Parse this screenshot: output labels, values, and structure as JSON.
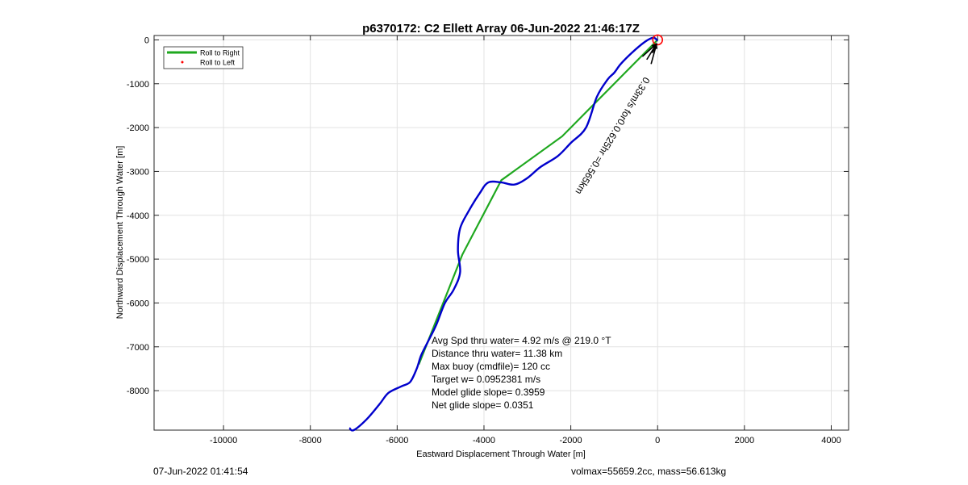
{
  "chart_data": {
    "type": "line",
    "title": "p6370172: C2 Ellett Array 06-Jun-2022 21:46:17Z",
    "xlabel": "Eastward Displacement Through Water [m]",
    "ylabel": "Northward Displacement Through Water [m]",
    "xlim": [
      -11600,
      4400
    ],
    "ylim": [
      -8900,
      100
    ],
    "xticks": [
      -10000,
      -8000,
      -6000,
      -4000,
      -2000,
      0,
      2000,
      4000
    ],
    "yticks": [
      0,
      -1000,
      -2000,
      -3000,
      -4000,
      -5000,
      -6000,
      -7000,
      -8000
    ],
    "grid": true,
    "legend_position": "top-left",
    "series": [
      {
        "name": "Roll to Right",
        "color": "#1fa81f",
        "x": [
          0,
          -800,
          -2200,
          -3600,
          -4500,
          -5500
        ],
        "y": [
          0,
          -800,
          -2200,
          -3200,
          -4900,
          -7400
        ]
      },
      {
        "name": "Roll to Left",
        "color": "#ff0000",
        "x": [],
        "y": []
      },
      {
        "name": "",
        "color": "#0000cc",
        "x": [
          0,
          -100,
          -300,
          -600,
          -850,
          -1000,
          -1150,
          -1400,
          -1650,
          -2000,
          -2300,
          -2700,
          -3000,
          -3300,
          -3600,
          -3900,
          -4100,
          -4350,
          -4550,
          -4600,
          -4550,
          -4700,
          -4900,
          -5100,
          -5300,
          -5450,
          -5550,
          -5700,
          -5900,
          -6200,
          -6400,
          -6700,
          -7000,
          -7100
        ],
        "y": [
          -20,
          50,
          -50,
          -300,
          -550,
          -750,
          -900,
          -1300,
          -2000,
          -2350,
          -2650,
          -2900,
          -3150,
          -3300,
          -3250,
          -3250,
          -3500,
          -3900,
          -4300,
          -4800,
          -5300,
          -5700,
          -6000,
          -6500,
          -6900,
          -7200,
          -7500,
          -7800,
          -7900,
          -8050,
          -8300,
          -8650,
          -8900,
          -8850
        ]
      }
    ],
    "arrow_label": "0.33m/s for0.0.625hr =0.565km",
    "target_marker_color": "#ff0000",
    "annotations": [
      "Avg Spd thru water=  4.92 m/s @ 219.0 °T",
      "Distance thru water= 11.38 km",
      "Max buoy (cmdfile)= 120 cc",
      "Target w= 0.0952381 m/s",
      "Model glide slope= 0.3959",
      "Net glide slope= 0.0351"
    ]
  },
  "footer": {
    "left": "07-Jun-2022 01:41:54",
    "right": "volmax=55659.2cc, mass=56.613kg"
  }
}
